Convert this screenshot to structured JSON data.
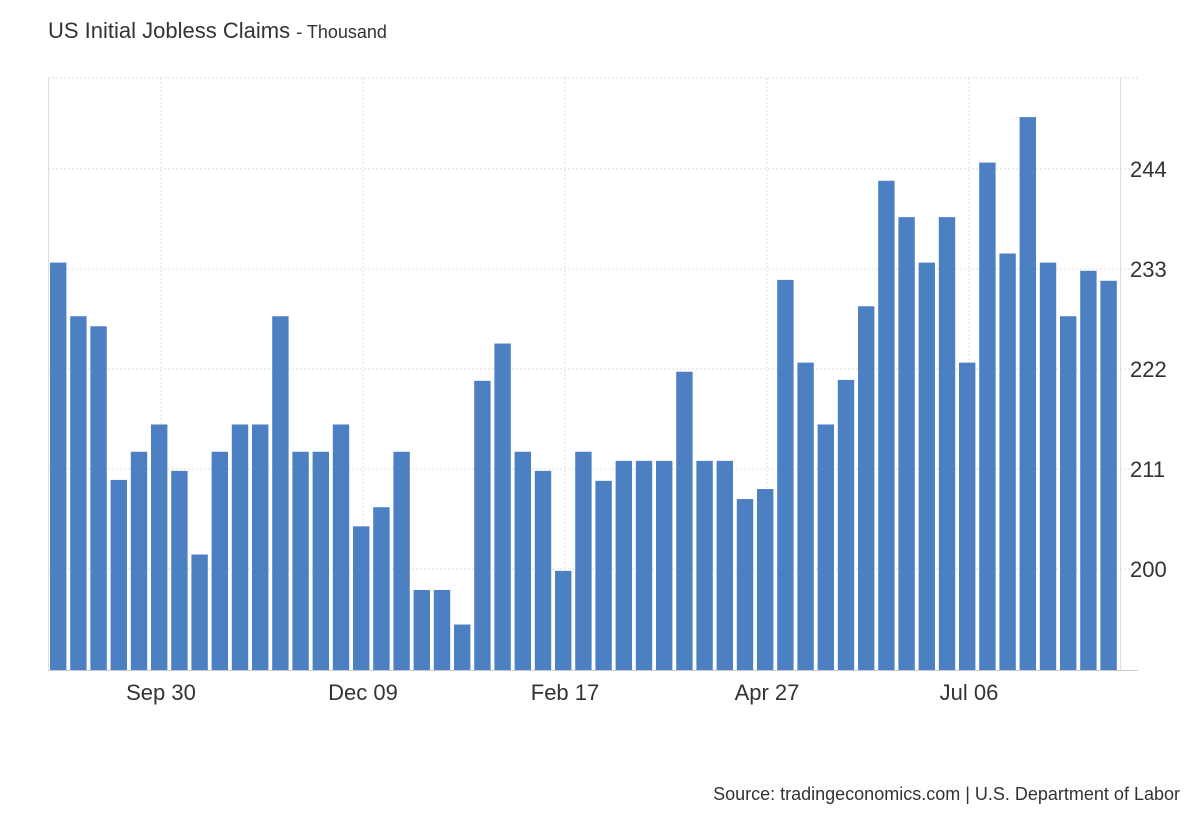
{
  "chart_data": {
    "type": "bar",
    "title": "US Initial Jobless Claims",
    "subtitle": "Thousand",
    "source": "Source: tradingeconomics.com | U.S. Department of Labor",
    "ylim": [
      188.9,
      254
    ],
    "yticks": [
      200,
      211,
      222,
      233,
      244
    ],
    "xtick_labels": [
      {
        "label": "Sep 30",
        "index": 5
      },
      {
        "label": "Dec 09",
        "index": 15
      },
      {
        "label": "Feb 17",
        "index": 25
      },
      {
        "label": "Apr 27",
        "index": 35
      },
      {
        "label": "Jul 06",
        "index": 45
      }
    ],
    "grid": true,
    "bar_color": "#4d80c3",
    "values": [
      233.7,
      227.8,
      226.7,
      209.8,
      212.9,
      215.9,
      210.8,
      201.6,
      212.9,
      215.9,
      215.9,
      227.8,
      212.9,
      212.9,
      215.9,
      204.7,
      206.8,
      212.9,
      197.7,
      197.7,
      193.9,
      220.7,
      224.8,
      212.9,
      210.8,
      199.8,
      212.9,
      209.7,
      211.9,
      211.9,
      211.9,
      221.7,
      211.9,
      211.9,
      207.7,
      208.8,
      231.8,
      222.7,
      215.9,
      220.8,
      228.9,
      242.7,
      238.7,
      233.7,
      238.7,
      222.7,
      244.7,
      234.7,
      249.7,
      233.7,
      227.8,
      232.8,
      231.7
    ]
  }
}
